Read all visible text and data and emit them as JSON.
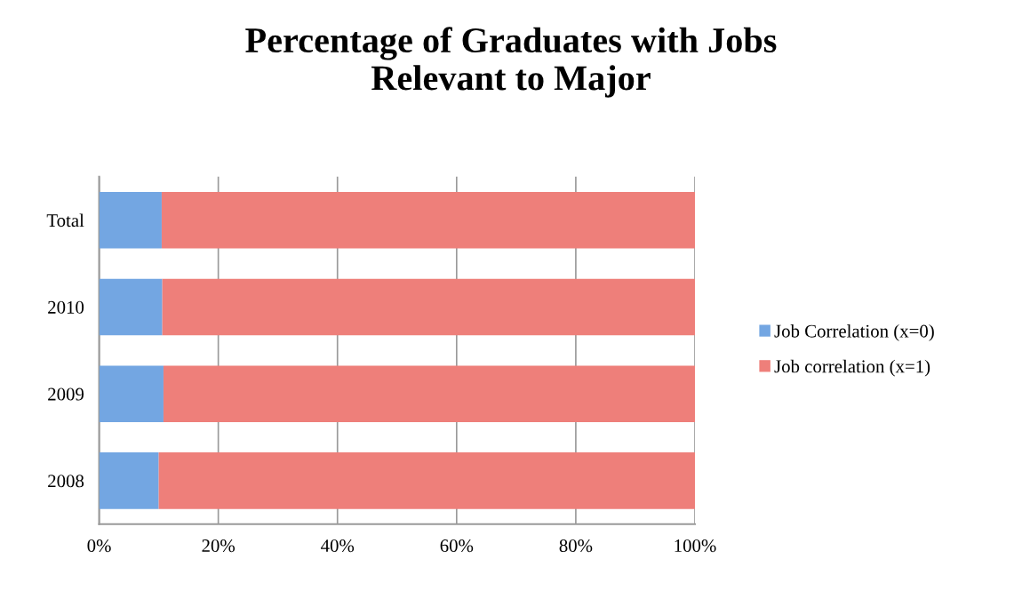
{
  "chart_data": {
    "type": "bar",
    "orientation": "horizontal",
    "stacked": true,
    "title": "Percentage of Graduates with Jobs\nRelevant to Major",
    "categories": [
      "Total",
      "2010",
      "2009",
      "2008"
    ],
    "series": [
      {
        "name": "Job Correlation (x=0)",
        "color": "#73a6e2",
        "values": [
          10.5,
          10.6,
          10.8,
          10.0
        ]
      },
      {
        "name": "Job correlation (x=1)",
        "color": "#ee7f7a",
        "values": [
          89.5,
          89.4,
          89.2,
          90.0
        ]
      }
    ],
    "xlim": [
      0,
      100
    ],
    "xticks": [
      {
        "value": 0,
        "label": "0%"
      },
      {
        "value": 20,
        "label": "20%"
      },
      {
        "value": 40,
        "label": "40%"
      },
      {
        "value": 60,
        "label": "60%"
      },
      {
        "value": 80,
        "label": "80%"
      },
      {
        "value": 100,
        "label": "100%"
      }
    ],
    "grid": "x",
    "legend": "right"
  }
}
